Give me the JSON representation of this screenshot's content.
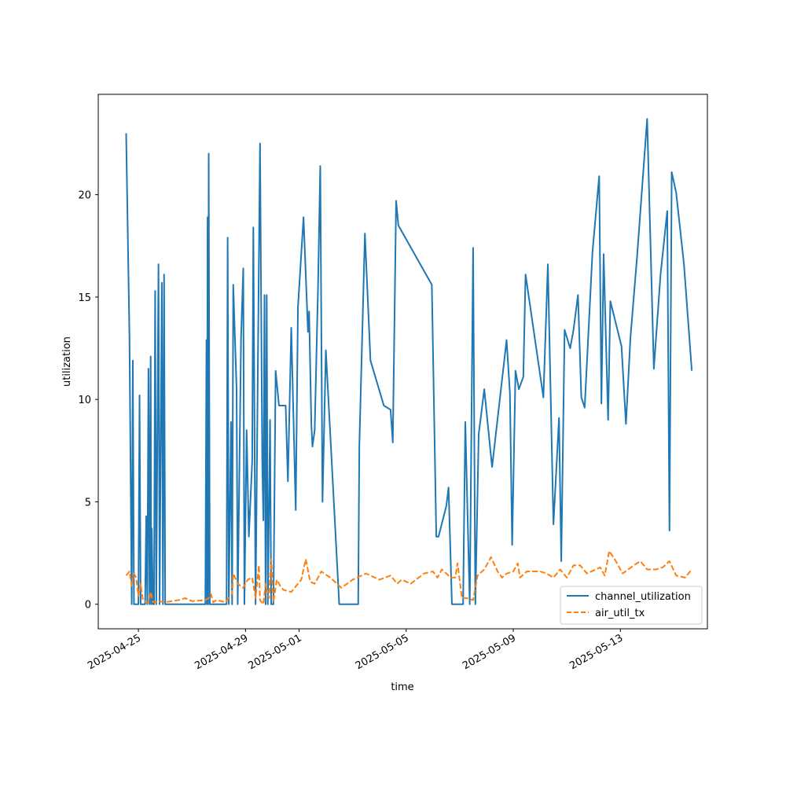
{
  "chart_data": {
    "type": "line",
    "title": "",
    "xlabel": "time",
    "ylabel": "utilization",
    "x_type": "date",
    "xlim": [
      "2025-04-23T12:00",
      "2025-05-16T06:00"
    ],
    "ylim": [
      -1.2,
      24.9
    ],
    "grid": false,
    "legend_position": "lower-right",
    "x_ticks": [
      "2025-04-25",
      "2025-04-29",
      "2025-05-01",
      "2025-05-05",
      "2025-05-09",
      "2025-05-13"
    ],
    "y_ticks": [
      0,
      5,
      10,
      15,
      20
    ],
    "series": [
      {
        "name": "channel_utilization",
        "color": "#1f77b4",
        "style": "solid",
        "points": [
          [
            "2025-04-24T13:00",
            23.0
          ],
          [
            "2025-04-24T16:00",
            13.0
          ],
          [
            "2025-04-24T18:00",
            0
          ],
          [
            "2025-04-24T19:00",
            11.9
          ],
          [
            "2025-04-24T20:00",
            0
          ],
          [
            "2025-04-25T00:00",
            0
          ],
          [
            "2025-04-25T01:00",
            10.2
          ],
          [
            "2025-04-25T02:00",
            0
          ],
          [
            "2025-04-25T06:00",
            0
          ],
          [
            "2025-04-25T07:00",
            4.3
          ],
          [
            "2025-04-25T08:00",
            0
          ],
          [
            "2025-04-25T09:00",
            11.5
          ],
          [
            "2025-04-25T10:00",
            0
          ],
          [
            "2025-04-25T11:00",
            12.1
          ],
          [
            "2025-04-25T11:30",
            0
          ],
          [
            "2025-04-25T12:00",
            3.7
          ],
          [
            "2025-04-25T13:00",
            0
          ],
          [
            "2025-04-25T14:00",
            0
          ],
          [
            "2025-04-25T15:00",
            15.3
          ],
          [
            "2025-04-25T16:00",
            0
          ],
          [
            "2025-04-25T18:00",
            16.6
          ],
          [
            "2025-04-25T19:00",
            0
          ],
          [
            "2025-04-25T21:00",
            15.7
          ],
          [
            "2025-04-25T22:00",
            0
          ],
          [
            "2025-04-25T23:00",
            16.1
          ],
          [
            "2025-04-26T00:00",
            0
          ],
          [
            "2025-04-27T12:00",
            0
          ],
          [
            "2025-04-27T13:00",
            12.9
          ],
          [
            "2025-04-27T13:30",
            0
          ],
          [
            "2025-04-27T14:00",
            18.9
          ],
          [
            "2025-04-27T14:30",
            0
          ],
          [
            "2025-04-27T15:00",
            22.0
          ],
          [
            "2025-04-27T16:00",
            0
          ],
          [
            "2025-04-28T07:00",
            0
          ],
          [
            "2025-04-28T08:00",
            17.9
          ],
          [
            "2025-04-28T09:00",
            0
          ],
          [
            "2025-04-28T11:00",
            8.9
          ],
          [
            "2025-04-28T12:00",
            0
          ],
          [
            "2025-04-28T13:00",
            15.6
          ],
          [
            "2025-04-28T16:00",
            10.5
          ],
          [
            "2025-04-28T17:00",
            0
          ],
          [
            "2025-04-28T20:00",
            13.0
          ],
          [
            "2025-04-28T22:00",
            16.4
          ],
          [
            "2025-04-28T23:00",
            0
          ],
          [
            "2025-04-29T01:00",
            8.5
          ],
          [
            "2025-04-29T03:00",
            3.3
          ],
          [
            "2025-04-29T06:00",
            7.0
          ],
          [
            "2025-04-29T07:00",
            18.4
          ],
          [
            "2025-04-29T09:00",
            0
          ],
          [
            "2025-04-29T13:00",
            22.5
          ],
          [
            "2025-04-29T15:00",
            7.0
          ],
          [
            "2025-04-29T16:00",
            4.1
          ],
          [
            "2025-04-29T17:00",
            15.1
          ],
          [
            "2025-04-29T18:00",
            0
          ],
          [
            "2025-04-29T19:00",
            15.1
          ],
          [
            "2025-04-29T20:00",
            0
          ],
          [
            "2025-04-29T22:00",
            9.0
          ],
          [
            "2025-04-29T23:00",
            0
          ],
          [
            "2025-04-30T01:00",
            0
          ],
          [
            "2025-04-30T03:00",
            11.4
          ],
          [
            "2025-04-30T06:00",
            9.7
          ],
          [
            "2025-04-30T12:00",
            9.7
          ],
          [
            "2025-04-30T14:00",
            6.0
          ],
          [
            "2025-04-30T17:00",
            13.5
          ],
          [
            "2025-04-30T21:00",
            4.6
          ],
          [
            "2025-04-30T23:00",
            14.5
          ],
          [
            "2025-05-01T04:00",
            18.9
          ],
          [
            "2025-05-01T08:00",
            13.3
          ],
          [
            "2025-05-01T09:00",
            14.3
          ],
          [
            "2025-05-01T11:00",
            8.8
          ],
          [
            "2025-05-01T12:00",
            7.7
          ],
          [
            "2025-05-01T14:00",
            8.5
          ],
          [
            "2025-05-01T17:00",
            15.5
          ],
          [
            "2025-05-01T19:00",
            21.4
          ],
          [
            "2025-05-01T21:00",
            5.0
          ],
          [
            "2025-05-02T00:00",
            12.4
          ],
          [
            "2025-05-02T12:00",
            0
          ],
          [
            "2025-05-03T05:00",
            0
          ],
          [
            "2025-05-03T06:00",
            7.7
          ],
          [
            "2025-05-03T11:00",
            18.1
          ],
          [
            "2025-05-03T16:00",
            11.9
          ],
          [
            "2025-05-04T04:00",
            9.7
          ],
          [
            "2025-05-04T10:00",
            9.5
          ],
          [
            "2025-05-04T12:00",
            7.9
          ],
          [
            "2025-05-04T15:00",
            19.7
          ],
          [
            "2025-05-04T17:00",
            18.5
          ],
          [
            "2025-05-05T23:00",
            15.6
          ],
          [
            "2025-05-06T03:00",
            3.3
          ],
          [
            "2025-05-06T05:00",
            3.3
          ],
          [
            "2025-05-06T12:00",
            4.8
          ],
          [
            "2025-05-06T14:00",
            5.7
          ],
          [
            "2025-05-06T17:00",
            0
          ],
          [
            "2025-05-06T22:00",
            0
          ],
          [
            "2025-05-07T03:00",
            0
          ],
          [
            "2025-05-07T05:00",
            8.9
          ],
          [
            "2025-05-07T09:00",
            0
          ],
          [
            "2025-05-07T12:00",
            17.4
          ],
          [
            "2025-05-07T14:00",
            0
          ],
          [
            "2025-05-07T17:00",
            8.3
          ],
          [
            "2025-05-07T22:00",
            10.5
          ],
          [
            "2025-05-08T05:00",
            6.7
          ],
          [
            "2025-05-08T18:00",
            12.9
          ],
          [
            "2025-05-08T21:00",
            10.3
          ],
          [
            "2025-05-08T23:00",
            2.9
          ],
          [
            "2025-05-09T02:00",
            11.4
          ],
          [
            "2025-05-09T05:00",
            10.5
          ],
          [
            "2025-05-09T09:00",
            11.1
          ],
          [
            "2025-05-09T11:00",
            16.1
          ],
          [
            "2025-05-10T03:00",
            10.1
          ],
          [
            "2025-05-10T07:00",
            16.6
          ],
          [
            "2025-05-10T12:00",
            3.9
          ],
          [
            "2025-05-10T17:00",
            9.1
          ],
          [
            "2025-05-10T19:00",
            2.1
          ],
          [
            "2025-05-10T22:00",
            13.4
          ],
          [
            "2025-05-11T03:00",
            12.5
          ],
          [
            "2025-05-11T06:00",
            13.4
          ],
          [
            "2025-05-11T10:00",
            15.1
          ],
          [
            "2025-05-11T13:00",
            10.1
          ],
          [
            "2025-05-11T16:00",
            9.6
          ],
          [
            "2025-05-11T23:00",
            17.2
          ],
          [
            "2025-05-12T05:00",
            20.9
          ],
          [
            "2025-05-12T07:00",
            9.8
          ],
          [
            "2025-05-12T09:00",
            17.1
          ],
          [
            "2025-05-12T13:00",
            9.0
          ],
          [
            "2025-05-12T15:00",
            14.8
          ],
          [
            "2025-05-13T01:00",
            12.6
          ],
          [
            "2025-05-13T05:00",
            8.8
          ],
          [
            "2025-05-13T09:00",
            13.0
          ],
          [
            "2025-05-13T15:00",
            17.0
          ],
          [
            "2025-05-14T00:00",
            23.7
          ],
          [
            "2025-05-14T06:00",
            11.5
          ],
          [
            "2025-05-14T12:00",
            16.1
          ],
          [
            "2025-05-14T18:00",
            19.2
          ],
          [
            "2025-05-14T20:00",
            3.6
          ],
          [
            "2025-05-14T22:00",
            21.1
          ],
          [
            "2025-05-15T02:00",
            20.1
          ],
          [
            "2025-05-15T09:00",
            16.6
          ],
          [
            "2025-05-15T16:00",
            11.4
          ]
        ]
      },
      {
        "name": "air_util_tx",
        "color": "#ff7f0e",
        "style": "dashed",
        "points": [
          [
            "2025-04-24T13:00",
            1.4
          ],
          [
            "2025-04-24T16:00",
            1.6
          ],
          [
            "2025-04-24T18:00",
            0.9
          ],
          [
            "2025-04-24T20:00",
            1.5
          ],
          [
            "2025-04-24T22:00",
            1.3
          ],
          [
            "2025-04-25T00:00",
            0.4
          ],
          [
            "2025-04-25T02:00",
            1.0
          ],
          [
            "2025-04-25T04:00",
            0.2
          ],
          [
            "2025-04-25T07:00",
            0.1
          ],
          [
            "2025-04-25T09:00",
            0.1
          ],
          [
            "2025-04-25T11:00",
            0.6
          ],
          [
            "2025-04-25T13:00",
            0.1
          ],
          [
            "2025-04-25T15:00",
            0.1
          ],
          [
            "2025-04-25T18:00",
            0.15
          ],
          [
            "2025-04-26T00:00",
            0.1
          ],
          [
            "2025-04-26T12:00",
            0.2
          ],
          [
            "2025-04-26T18:00",
            0.3
          ],
          [
            "2025-04-27T00:00",
            0.15
          ],
          [
            "2025-04-27T12:00",
            0.2
          ],
          [
            "2025-04-27T15:00",
            0.3
          ],
          [
            "2025-04-27T17:00",
            0.5
          ],
          [
            "2025-04-27T19:00",
            0.1
          ],
          [
            "2025-04-27T22:00",
            0.2
          ],
          [
            "2025-04-28T06:00",
            0.1
          ],
          [
            "2025-04-28T12:00",
            0.5
          ],
          [
            "2025-04-28T13:00",
            1.5
          ],
          [
            "2025-04-28T17:00",
            1.0
          ],
          [
            "2025-04-28T22:00",
            0.8
          ],
          [
            "2025-04-29T02:00",
            1.2
          ],
          [
            "2025-04-29T06:00",
            1.3
          ],
          [
            "2025-04-29T09:00",
            0.3
          ],
          [
            "2025-04-29T12:00",
            1.9
          ],
          [
            "2025-04-29T13:00",
            0.2
          ],
          [
            "2025-04-29T16:00",
            0.0
          ],
          [
            "2025-04-29T18:00",
            1.0
          ],
          [
            "2025-04-29T21:00",
            0.3
          ],
          [
            "2025-04-29T23:00",
            2.2
          ],
          [
            "2025-04-30T01:00",
            0.1
          ],
          [
            "2025-04-30T04:00",
            1.2
          ],
          [
            "2025-04-30T07:00",
            0.9
          ],
          [
            "2025-04-30T10:00",
            0.7
          ],
          [
            "2025-04-30T17:00",
            0.6
          ],
          [
            "2025-04-30T23:00",
            1.0
          ],
          [
            "2025-05-01T02:00",
            1.2
          ],
          [
            "2025-05-01T06:00",
            2.2
          ],
          [
            "2025-05-01T10:00",
            1.1
          ],
          [
            "2025-05-01T14:00",
            1.0
          ],
          [
            "2025-05-01T20:00",
            1.6
          ],
          [
            "2025-05-02T04:00",
            1.3
          ],
          [
            "2025-05-02T14:00",
            0.8
          ],
          [
            "2025-05-03T00:00",
            1.2
          ],
          [
            "2025-05-03T12:00",
            1.5
          ],
          [
            "2025-05-04T00:00",
            1.2
          ],
          [
            "2025-05-04T10:00",
            1.4
          ],
          [
            "2025-05-04T16:00",
            1.0
          ],
          [
            "2025-05-04T20:00",
            1.2
          ],
          [
            "2025-05-05T04:00",
            1.0
          ],
          [
            "2025-05-05T16:00",
            1.5
          ],
          [
            "2025-05-06T00:00",
            1.6
          ],
          [
            "2025-05-06T04:00",
            1.3
          ],
          [
            "2025-05-06T08:00",
            1.7
          ],
          [
            "2025-05-06T16:00",
            1.3
          ],
          [
            "2025-05-06T20:00",
            1.3
          ],
          [
            "2025-05-06T22:00",
            2.0
          ],
          [
            "2025-05-07T02:00",
            0.3
          ],
          [
            "2025-05-07T06:00",
            0.3
          ],
          [
            "2025-05-07T12:00",
            0.2
          ],
          [
            "2025-05-07T16:00",
            1.4
          ],
          [
            "2025-05-07T22:00",
            1.7
          ],
          [
            "2025-05-08T04:00",
            2.3
          ],
          [
            "2025-05-08T10:00",
            1.6
          ],
          [
            "2025-05-08T14:00",
            1.3
          ],
          [
            "2025-05-08T18:00",
            1.5
          ],
          [
            "2025-05-09T00:00",
            1.6
          ],
          [
            "2025-05-09T04:00",
            2.0
          ],
          [
            "2025-05-09T06:00",
            1.3
          ],
          [
            "2025-05-09T12:00",
            1.6
          ],
          [
            "2025-05-10T00:00",
            1.6
          ],
          [
            "2025-05-10T06:00",
            1.5
          ],
          [
            "2025-05-10T12:00",
            1.3
          ],
          [
            "2025-05-10T18:00",
            1.7
          ],
          [
            "2025-05-11T00:00",
            1.3
          ],
          [
            "2025-05-11T06:00",
            1.9
          ],
          [
            "2025-05-11T12:00",
            1.9
          ],
          [
            "2025-05-11T18:00",
            1.5
          ],
          [
            "2025-05-12T06:00",
            1.8
          ],
          [
            "2025-05-12T10:00",
            1.4
          ],
          [
            "2025-05-12T14:00",
            2.6
          ],
          [
            "2025-05-12T20:00",
            2.1
          ],
          [
            "2025-05-13T02:00",
            1.5
          ],
          [
            "2025-05-13T12:00",
            1.9
          ],
          [
            "2025-05-13T18:00",
            2.1
          ],
          [
            "2025-05-14T00:00",
            1.7
          ],
          [
            "2025-05-14T08:00",
            1.7
          ],
          [
            "2025-05-14T14:00",
            1.8
          ],
          [
            "2025-05-14T20:00",
            2.1
          ],
          [
            "2025-05-15T02:00",
            1.4
          ],
          [
            "2025-05-15T10:00",
            1.3
          ],
          [
            "2025-05-15T16:00",
            1.7
          ]
        ]
      }
    ]
  }
}
